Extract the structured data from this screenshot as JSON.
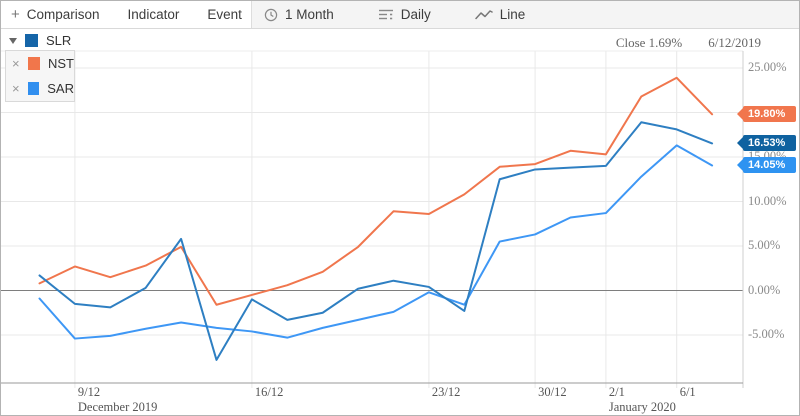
{
  "toolbar": {
    "add_icon": "+",
    "items_left": [
      "Comparison",
      "Indicator",
      "Event"
    ],
    "items_right": [
      {
        "icon": "clock-icon",
        "label": "1 Month"
      },
      {
        "icon": "interval-icon",
        "label": "Daily"
      },
      {
        "icon": "line-type-icon",
        "label": "Line"
      }
    ]
  },
  "legend": {
    "dropdown_icon": "▼",
    "remove_icon": "×",
    "primary": {
      "symbol": "SLR",
      "color": "#1565a8"
    },
    "comparisons": [
      {
        "symbol": "NST",
        "color": "#f1764b"
      },
      {
        "symbol": "SAR",
        "color": "#318fef"
      }
    ]
  },
  "readout": {
    "close_label": "Close 1.69%",
    "date": "6/12/2019"
  },
  "y_axis": {
    "labels": [
      "25.00%",
      "20.00%",
      "15.00%",
      "10.00%",
      "5.00%",
      "0.00%",
      "-5.00%"
    ],
    "values": [
      25,
      20,
      15,
      10,
      5,
      0,
      -5
    ]
  },
  "badges": [
    {
      "text": "19.80%",
      "value": 19.8,
      "color": "#f1764d"
    },
    {
      "text": "16.53%",
      "value": 16.53,
      "color": "#0f62a0"
    },
    {
      "text": "14.05%",
      "value": 14.05,
      "color": "#2e93f1"
    }
  ],
  "x_axis": {
    "ticks": [
      {
        "label": "9/12",
        "index": 1
      },
      {
        "label": "16/12",
        "index": 6
      },
      {
        "label": "23/12",
        "index": 11
      },
      {
        "label": "30/12",
        "index": 14
      },
      {
        "label": "2/1",
        "index": 16
      },
      {
        "label": "6/1",
        "index": 18
      }
    ],
    "months": [
      {
        "label": "December 2019",
        "index": 1
      },
      {
        "label": "January 2020",
        "index": 16
      }
    ]
  },
  "chart_data": {
    "type": "line",
    "unit": "%",
    "x": [
      "6/12",
      "9/12",
      "10/12",
      "11/12",
      "12/12",
      "13/12",
      "16/12",
      "17/12",
      "18/12",
      "19/12",
      "20/12",
      "23/12",
      "24/12",
      "27/12",
      "30/12",
      "31/12",
      "2/1",
      "3/1",
      "6/1",
      "7/1"
    ],
    "ylim": [
      -10.5,
      27.5
    ],
    "grid": true,
    "zero_line": true,
    "legend_position": "top-left",
    "series": [
      {
        "name": "NST",
        "color": "#f0764d",
        "values": [
          0.8,
          2.7,
          1.5,
          2.8,
          4.9,
          -1.6,
          -0.5,
          0.6,
          2.1,
          4.9,
          8.9,
          8.6,
          10.8,
          13.9,
          14.2,
          15.7,
          15.3,
          21.8,
          23.9,
          19.8
        ]
      },
      {
        "name": "SAR",
        "color": "#3e97f5",
        "values": [
          -0.9,
          -5.4,
          -5.1,
          -4.3,
          -3.6,
          -4.2,
          -4.6,
          -5.3,
          -4.2,
          -3.3,
          -2.4,
          -0.2,
          -1.6,
          5.5,
          6.3,
          8.2,
          8.7,
          12.8,
          16.3,
          14.05
        ]
      },
      {
        "name": "SLR",
        "color": "#2e7fc2",
        "values": [
          1.69,
          -1.5,
          -1.9,
          0.3,
          5.8,
          -7.8,
          -1.0,
          -3.3,
          -2.5,
          0.2,
          1.1,
          0.4,
          -2.3,
          12.5,
          13.6,
          13.8,
          14.0,
          18.9,
          18.1,
          16.53
        ]
      }
    ]
  }
}
